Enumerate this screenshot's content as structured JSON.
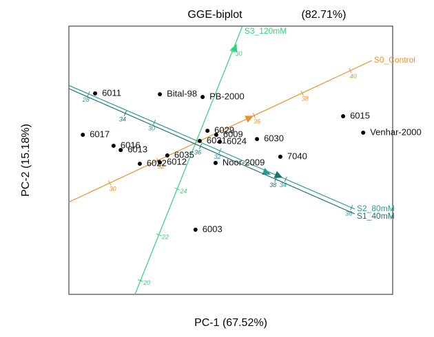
{
  "chart_data": {
    "type": "scatter",
    "title": "GGE-biplot",
    "subtitle": "(82.71%)",
    "x_label": "PC-1  (67.52%)",
    "y_label": "PC-2  (15.18%)",
    "xlim": [
      0,
      100
    ],
    "ylim": [
      0,
      100
    ],
    "color": "#000000",
    "labels": [
      "6011",
      "Bital-98",
      "PB-2000",
      "6015",
      "Venhar-2000",
      "6017",
      "6016",
      "6013",
      "6029",
      "6009",
      "6031",
      "6024",
      "6030",
      "7040",
      "Noor-2009",
      "6035",
      "6012",
      "6022",
      "6003"
    ],
    "x": [
      8.1,
      28.1,
      41.3,
      84.7,
      90.9,
      4.3,
      13.8,
      16.0,
      42.8,
      45.5,
      40.4,
      46.6,
      58.1,
      65.3,
      45.3,
      30.4,
      28.1,
      21.9,
      39.1
    ],
    "y": [
      74.9,
      74.6,
      73.6,
      66.4,
      60.3,
      59.5,
      55.4,
      53.8,
      61.0,
      59.5,
      57.2,
      56.9,
      57.9,
      51.3,
      49.0,
      51.8,
      49.2,
      48.7,
      24.1
    ],
    "environments": [
      {
        "name": "S3_120mM",
        "color": "#2fd37a",
        "start": [
          20.4,
          0
        ],
        "end": [
          53.6,
          100
        ],
        "vector": [
          51.1,
          91.3
        ],
        "lim": [
          19.4,
          31.1
        ],
        "ticks": [
          20,
          22,
          24,
          30
        ]
      },
      {
        "name": "S0_Control",
        "color": "#e8912a",
        "start": [
          0,
          34.4
        ],
        "end": [
          93.6,
          87.2
        ],
        "vector": [
          55.3,
          65.6
        ],
        "lim": [
          28.3,
          40.9
        ],
        "ticks": [
          30,
          32,
          36,
          38,
          40
        ]
      },
      {
        "name": "S2_80mM",
        "color": "#2a9a9a",
        "start": [
          0,
          77.9
        ],
        "end": [
          88.3,
          31.8
        ],
        "vector": [
          60.6,
          45.6
        ],
        "lim": [
          27.4,
          36.1
        ],
        "ticks": [
          28,
          30,
          32,
          34,
          36
        ]
      },
      {
        "name": "S1_40mM",
        "color": "#1d6f6f",
        "start": [
          0,
          76.7
        ],
        "end": [
          88.3,
          30.0
        ],
        "vector": [
          64.3,
          44.4
        ],
        "lim": [
          32.5,
          40.1
        ],
        "ticks": [
          34,
          36,
          38
        ]
      }
    ]
  }
}
